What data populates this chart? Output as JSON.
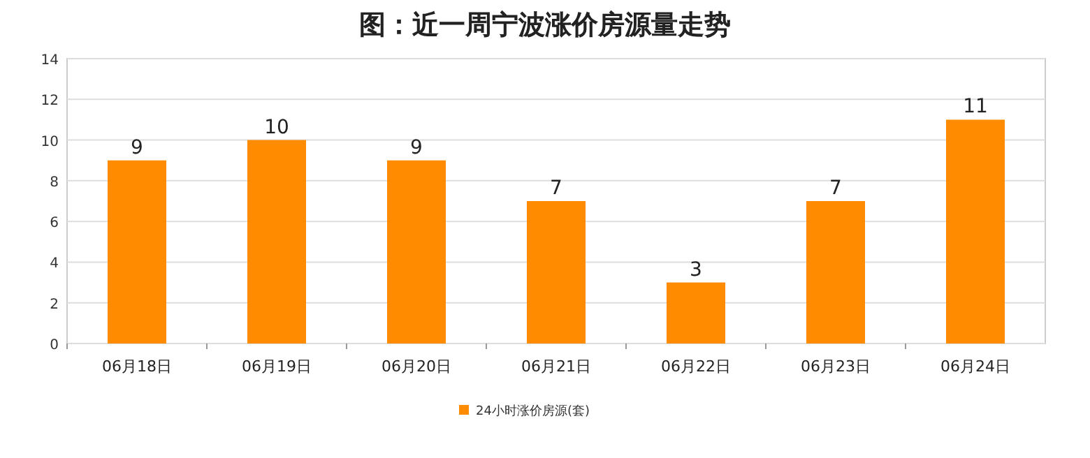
{
  "chart_data": {
    "type": "bar",
    "title": "图：近一周宁波涨价房源量走势",
    "categories": [
      "06月18日",
      "06月19日",
      "06月20日",
      "06月21日",
      "06月22日",
      "06月23日",
      "06月24日"
    ],
    "series": [
      {
        "name": "24小时涨价房源(套)",
        "color": "#ff8c00",
        "values": [
          9,
          10,
          9,
          7,
          3,
          7,
          11
        ]
      }
    ],
    "ylim": [
      0,
      14
    ],
    "yticks": [
      0,
      2,
      4,
      6,
      8,
      10,
      12,
      14
    ],
    "grid": "y",
    "legend": "bottom",
    "data_labels": true
  }
}
